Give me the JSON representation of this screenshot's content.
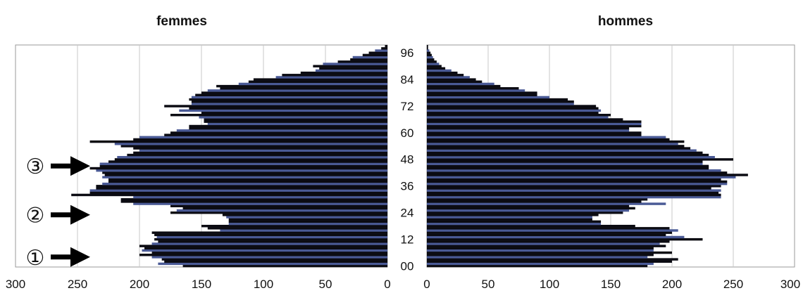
{
  "chart_data": {
    "type": "bar",
    "orientation": "horizontal-pyramid",
    "panels": [
      {
        "name": "femmes",
        "title": "femmes",
        "direction": "left"
      },
      {
        "name": "hommes",
        "title": "hommes",
        "direction": "right"
      }
    ],
    "xlim": [
      0,
      300
    ],
    "x_ticks": [
      "300",
      "250",
      "200",
      "150",
      "100",
      "50",
      "0"
    ],
    "x_ticks_right": [
      "0",
      "50",
      "100",
      "150",
      "200",
      "250",
      "300"
    ],
    "age_labels": [
      "00",
      "12",
      "24",
      "36",
      "48",
      "60",
      "72",
      "84",
      "96"
    ],
    "age_range": [
      0,
      99
    ],
    "grid": true,
    "markers": [
      {
        "label": "③",
        "age": 45
      },
      {
        "label": "②",
        "age": 23
      },
      {
        "label": "①",
        "age": 4
      }
    ],
    "series": [
      {
        "name": "femmes",
        "values": [
          165,
          185,
          180,
          182,
          190,
          200,
          190,
          198,
          196,
          200,
          190,
          185,
          188,
          186,
          188,
          190,
          135,
          145,
          150,
          128,
          128,
          128,
          130,
          133,
          175,
          170,
          165,
          175,
          205,
          215,
          215,
          205,
          255,
          240,
          240,
          235,
          235,
          230,
          225,
          225,
          230,
          228,
          230,
          235,
          240,
          232,
          232,
          225,
          220,
          218,
          210,
          205,
          200,
          205,
          215,
          220,
          240,
          205,
          200,
          180,
          175,
          170,
          160,
          160,
          145,
          148,
          148,
          152,
          175,
          150,
          168,
          160,
          180,
          158,
          158,
          160,
          158,
          155,
          150,
          145,
          135,
          138,
          120,
          112,
          108,
          90,
          85,
          70,
          58,
          55,
          60,
          52,
          40,
          30,
          28,
          20,
          15,
          10,
          5,
          2
        ]
      },
      {
        "name": "hommes",
        "values": [
          180,
          185,
          200,
          205,
          180,
          185,
          200,
          185,
          185,
          195,
          190,
          198,
          225,
          210,
          195,
          200,
          205,
          198,
          170,
          142,
          142,
          135,
          135,
          140,
          160,
          165,
          170,
          165,
          195,
          175,
          180,
          240,
          240,
          238,
          240,
          232,
          240,
          245,
          245,
          240,
          252,
          262,
          245,
          240,
          230,
          230,
          225,
          225,
          250,
          235,
          230,
          225,
          220,
          215,
          210,
          205,
          210,
          198,
          195,
          175,
          175,
          165,
          165,
          175,
          175,
          175,
          160,
          148,
          150,
          140,
          142,
          140,
          138,
          120,
          120,
          115,
          100,
          90,
          90,
          80,
          75,
          60,
          55,
          45,
          40,
          35,
          30,
          25,
          20,
          15,
          12,
          10,
          8,
          6,
          5,
          4,
          3,
          2,
          1,
          1
        ]
      }
    ]
  },
  "colors": {
    "bar_dark": "#0b0b12",
    "bar_blue": "#4a5a96",
    "grid": "#c8c8c8",
    "plot_border": "#9a9a9a"
  }
}
